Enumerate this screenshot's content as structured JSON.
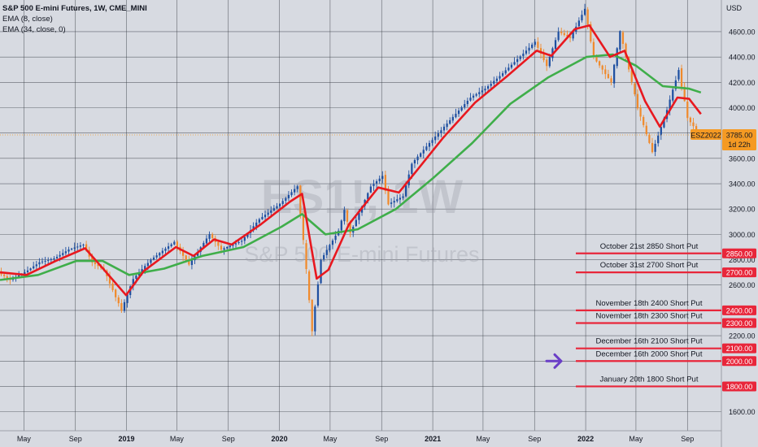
{
  "legend": {
    "title": "S&P 500 E-mini Futures, 1W, CME_MINI",
    "ema_fast": "EMA (8, close)",
    "ema_slow": "EMA (34, close, 0)"
  },
  "watermark": {
    "symbol": "ES1!, 1W",
    "name": "S&P 500 E-mini Futures"
  },
  "currency": "USD",
  "price_tag": {
    "symbol": "ESZ2022",
    "price": "3785.00",
    "countdown": "1d 22h"
  },
  "arrow_icon": "right-arrow-icon",
  "colors": {
    "background": "#d7dae1",
    "grid": "#3a3d45",
    "up": "#1e4fa0",
    "down": "#f08a2c",
    "ema_fast": "#e8181f",
    "ema_slow": "#3fae4a",
    "level": "#e8263a",
    "tag": "#f59a23",
    "arrow": "#6a3ec7"
  },
  "chart_data": {
    "type": "candlestick",
    "title": "S&P 500 E-mini Futures, 1W, CME_MINI",
    "y_unit": "USD",
    "ylim": [
      1450,
      4850
    ],
    "y_ticks": [
      1600,
      1800,
      2000,
      2200,
      2400,
      2600,
      2800,
      3000,
      3200,
      3400,
      3600,
      3800,
      4000,
      4200,
      4400,
      4600
    ],
    "x_range": [
      "2018-03-05",
      "2022-11-21"
    ],
    "x_ticks": [
      {
        "label": "May",
        "date": "2018-05-01"
      },
      {
        "label": "Sep",
        "date": "2018-09-01"
      },
      {
        "label": "2019",
        "date": "2019-01-01"
      },
      {
        "label": "May",
        "date": "2019-05-01"
      },
      {
        "label": "Sep",
        "date": "2019-09-01"
      },
      {
        "label": "2020",
        "date": "2020-01-01"
      },
      {
        "label": "May",
        "date": "2020-05-01"
      },
      {
        "label": "Sep",
        "date": "2020-09-01"
      },
      {
        "label": "2021",
        "date": "2021-01-01"
      },
      {
        "label": "May",
        "date": "2021-05-01"
      },
      {
        "label": "Sep",
        "date": "2021-09-01"
      },
      {
        "label": "2022",
        "date": "2022-01-01"
      },
      {
        "label": "May",
        "date": "2022-05-01"
      },
      {
        "label": "Sep",
        "date": "2022-09-01"
      }
    ],
    "price_path": [
      [
        "2018-03-05",
        2700
      ],
      [
        "2018-04-02",
        2640
      ],
      [
        "2018-05-07",
        2700
      ],
      [
        "2018-06-11",
        2780
      ],
      [
        "2018-07-16",
        2810
      ],
      [
        "2018-08-20",
        2880
      ],
      [
        "2018-09-24",
        2920
      ],
      [
        "2018-10-15",
        2780
      ],
      [
        "2018-11-12",
        2720
      ],
      [
        "2018-12-24",
        2400
      ],
      [
        "2019-01-21",
        2650
      ],
      [
        "2019-03-04",
        2800
      ],
      [
        "2019-04-29",
        2940
      ],
      [
        "2019-06-03",
        2760
      ],
      [
        "2019-07-22",
        3000
      ],
      [
        "2019-08-19",
        2880
      ],
      [
        "2019-10-07",
        2950
      ],
      [
        "2019-11-18",
        3120
      ],
      [
        "2020-01-06",
        3240
      ],
      [
        "2020-02-17",
        3380
      ],
      [
        "2020-03-02",
        2950
      ],
      [
        "2020-03-23",
        2240
      ],
      [
        "2020-04-13",
        2800
      ],
      [
        "2020-05-25",
        3030
      ],
      [
        "2020-06-08",
        3190
      ],
      [
        "2020-06-22",
        3010
      ],
      [
        "2020-08-10",
        3380
      ],
      [
        "2020-09-07",
        3460
      ],
      [
        "2020-09-21",
        3240
      ],
      [
        "2020-10-26",
        3300
      ],
      [
        "2020-11-16",
        3560
      ],
      [
        "2020-12-28",
        3720
      ],
      [
        "2021-02-15",
        3900
      ],
      [
        "2021-04-05",
        4080
      ],
      [
        "2021-05-10",
        4150
      ],
      [
        "2021-06-14",
        4250
      ],
      [
        "2021-08-16",
        4450
      ],
      [
        "2021-09-06",
        4520
      ],
      [
        "2021-10-04",
        4330
      ],
      [
        "2021-11-01",
        4600
      ],
      [
        "2021-11-29",
        4550
      ],
      [
        "2022-01-03",
        4780
      ],
      [
        "2022-01-24",
        4400
      ],
      [
        "2022-03-07",
        4200
      ],
      [
        "2022-03-28",
        4600
      ],
      [
        "2022-05-09",
        4000
      ],
      [
        "2022-06-13",
        3650
      ],
      [
        "2022-07-18",
        3980
      ],
      [
        "2022-08-15",
        4300
      ],
      [
        "2022-09-05",
        3920
      ],
      [
        "2022-10-03",
        3785
      ]
    ],
    "ema_fast": [
      [
        "2018-03-05",
        2700
      ],
      [
        "2018-05-07",
        2680
      ],
      [
        "2018-07-16",
        2790
      ],
      [
        "2018-09-24",
        2890
      ],
      [
        "2018-10-29",
        2760
      ],
      [
        "2018-12-31",
        2520
      ],
      [
        "2019-02-11",
        2710
      ],
      [
        "2019-04-29",
        2900
      ],
      [
        "2019-06-10",
        2830
      ],
      [
        "2019-07-29",
        2960
      ],
      [
        "2019-09-09",
        2920
      ],
      [
        "2019-11-18",
        3080
      ],
      [
        "2020-01-27",
        3260
      ],
      [
        "2020-02-24",
        3320
      ],
      [
        "2020-03-30",
        2650
      ],
      [
        "2020-04-27",
        2720
      ],
      [
        "2020-06-15",
        3080
      ],
      [
        "2020-08-24",
        3370
      ],
      [
        "2020-10-12",
        3330
      ],
      [
        "2020-11-23",
        3500
      ],
      [
        "2021-01-25",
        3760
      ],
      [
        "2021-04-12",
        4040
      ],
      [
        "2021-06-28",
        4250
      ],
      [
        "2021-09-06",
        4450
      ],
      [
        "2021-10-11",
        4410
      ],
      [
        "2021-12-06",
        4620
      ],
      [
        "2022-01-10",
        4650
      ],
      [
        "2022-02-28",
        4400
      ],
      [
        "2022-04-04",
        4450
      ],
      [
        "2022-05-23",
        4050
      ],
      [
        "2022-06-27",
        3850
      ],
      [
        "2022-08-08",
        4080
      ],
      [
        "2022-09-05",
        4070
      ],
      [
        "2022-10-03",
        3950
      ]
    ],
    "ema_slow": [
      [
        "2018-03-05",
        2640
      ],
      [
        "2018-06-04",
        2680
      ],
      [
        "2018-09-03",
        2790
      ],
      [
        "2018-11-05",
        2790
      ],
      [
        "2019-01-07",
        2680
      ],
      [
        "2019-04-01",
        2730
      ],
      [
        "2019-07-01",
        2830
      ],
      [
        "2019-10-07",
        2900
      ],
      [
        "2020-01-06",
        3060
      ],
      [
        "2020-02-24",
        3160
      ],
      [
        "2020-04-20",
        3000
      ],
      [
        "2020-07-06",
        3040
      ],
      [
        "2020-10-05",
        3200
      ],
      [
        "2021-01-04",
        3450
      ],
      [
        "2021-04-05",
        3720
      ],
      [
        "2021-07-05",
        4030
      ],
      [
        "2021-10-04",
        4240
      ],
      [
        "2022-01-03",
        4400
      ],
      [
        "2022-03-07",
        4420
      ],
      [
        "2022-05-02",
        4330
      ],
      [
        "2022-07-04",
        4170
      ],
      [
        "2022-09-05",
        4150
      ],
      [
        "2022-10-03",
        4120
      ]
    ],
    "levels": [
      {
        "label": "October 21st 2850 Short Put",
        "price": 2850,
        "tag": "2850.00"
      },
      {
        "label": "October 31st 2700 Short Put",
        "price": 2700,
        "tag": "2700.00"
      },
      {
        "label": "November 18th 2400 Short Put",
        "price": 2400,
        "tag": "2400.00"
      },
      {
        "label": "November 18th 2300 Short Put",
        "price": 2300,
        "tag": "2300.00"
      },
      {
        "label": "December 16th 2100 Short Put",
        "price": 2100,
        "tag": "2100.00"
      },
      {
        "label": "December 16th 2000 Short Put",
        "price": 2000,
        "tag": "2000.00"
      },
      {
        "label": "January 20th 1800 Short Put",
        "price": 1800,
        "tag": "1800.00"
      }
    ],
    "arrow_level": 2000,
    "last_price": 3785
  }
}
